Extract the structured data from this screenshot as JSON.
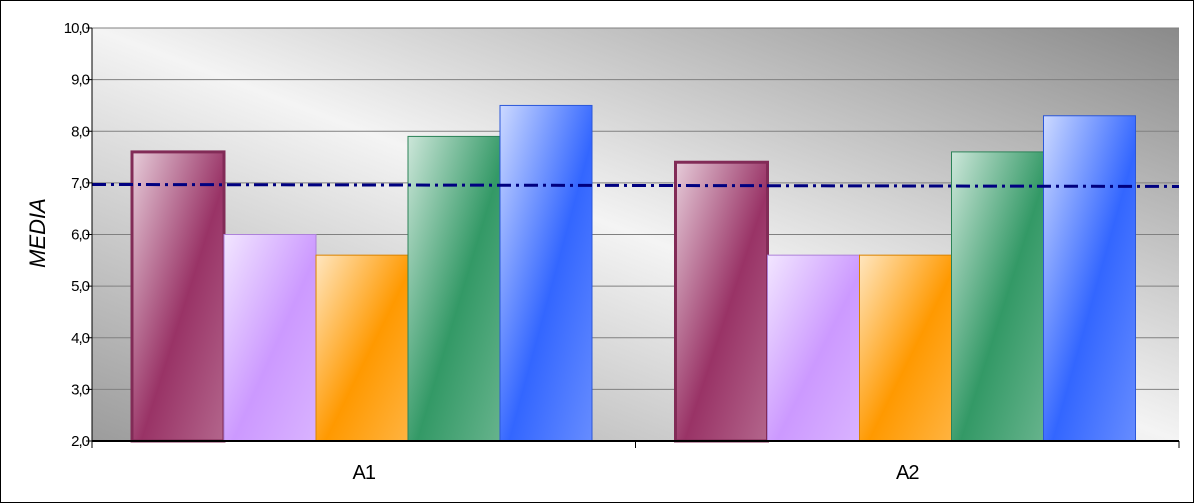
{
  "chart_data": {
    "type": "bar",
    "title": "",
    "xlabel": "",
    "ylabel": "MEDIA",
    "categories": [
      "A1",
      "A2"
    ],
    "ylim": [
      2.0,
      10.0
    ],
    "yticks": [
      "2,0",
      "3,0",
      "4,0",
      "5,0",
      "6,0",
      "7,0",
      "8,0",
      "9,0",
      "10,0"
    ],
    "grid": true,
    "legend": "none",
    "reference_line": {
      "value": 6.95,
      "style": "dash-dot",
      "color": "#000080"
    },
    "series": [
      {
        "values": [
          7.6,
          7.4
        ],
        "color": "#993366"
      },
      {
        "values": [
          6.0,
          5.6
        ],
        "color": "#cc99ff"
      },
      {
        "values": [
          5.6,
          5.6
        ],
        "color": "#ff9900"
      },
      {
        "values": [
          7.9,
          7.6
        ],
        "color": "#339966"
      },
      {
        "values": [
          8.5,
          8.3
        ],
        "color": "#3366ff"
      }
    ]
  }
}
